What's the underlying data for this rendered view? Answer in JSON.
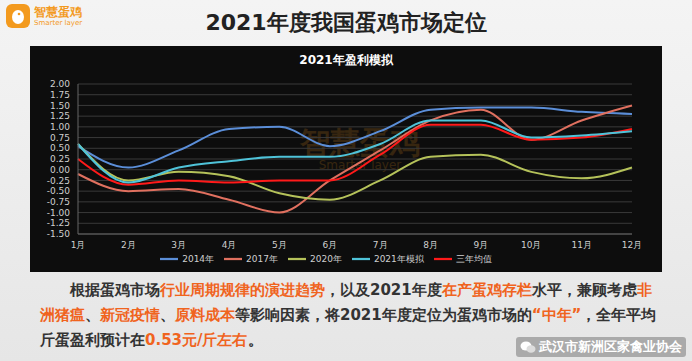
{
  "header": {
    "title": "2021年度我国蛋鸡市场定位",
    "logo": {
      "name": "智慧蛋鸡",
      "subtitle": "Smarter layer"
    }
  },
  "chart_data": {
    "type": "line",
    "title": "2021年盈利模拟",
    "categories": [
      "1月",
      "2月",
      "3月",
      "4月",
      "5月",
      "6月",
      "7月",
      "8月",
      "9月",
      "10月",
      "11月",
      "12月"
    ],
    "series": [
      {
        "name": "2014年",
        "color": "#5b8ed8",
        "values": [
          0.55,
          0.05,
          0.45,
          0.95,
          1.0,
          0.55,
          0.9,
          1.4,
          1.45,
          1.45,
          1.35,
          1.3
        ]
      },
      {
        "name": "2017年",
        "color": "#e0705f",
        "values": [
          -0.1,
          -0.5,
          -0.45,
          -0.7,
          -1.0,
          -0.25,
          0.45,
          1.15,
          1.4,
          0.7,
          1.15,
          1.5
        ]
      },
      {
        "name": "2020年",
        "color": "#b5c25a",
        "values": [
          0.6,
          -0.25,
          -0.05,
          -0.15,
          -0.55,
          -0.7,
          -0.25,
          0.3,
          0.35,
          -0.05,
          -0.2,
          0.05
        ]
      },
      {
        "name": "三年均值",
        "color": "#ff1a1a",
        "values": [
          0.25,
          -0.35,
          -0.25,
          -0.3,
          -0.25,
          -0.25,
          0.35,
          1.05,
          1.05,
          0.7,
          0.75,
          0.95
        ]
      },
      {
        "name": "2021年模拟",
        "color": "#4fc3d9",
        "values": [
          0.6,
          -0.3,
          0.05,
          0.2,
          0.3,
          0.3,
          0.6,
          1.15,
          1.15,
          0.75,
          0.8,
          0.9
        ]
      }
    ],
    "ylim": [
      -1.5,
      2
    ],
    "yticks": [
      {
        "value": -1.5,
        "label": "-1.50"
      },
      {
        "value": -1.25,
        "label": "-1.25"
      },
      {
        "value": -1,
        "label": "-1.00"
      },
      {
        "value": -0.75,
        "label": "-0.75"
      },
      {
        "value": -0.5,
        "label": "-0.50"
      },
      {
        "value": -0.25,
        "label": "-0.25"
      },
      {
        "value": 0,
        "label": "0.00"
      },
      {
        "value": 0.25,
        "label": "0.25"
      },
      {
        "value": 0.5,
        "label": "0.50"
      },
      {
        "value": 0.75,
        "label": "0.75"
      },
      {
        "value": 1,
        "label": "1.00"
      },
      {
        "value": 1.25,
        "label": "1.25"
      },
      {
        "value": 1.5,
        "label": "1.50"
      },
      {
        "value": 1.75,
        "label": "1.75"
      },
      {
        "value": 2,
        "label": "2.00"
      }
    ],
    "grid": true,
    "legend": "bottom",
    "marker": "none",
    "line_style": "solid"
  },
  "paragraph": [
    {
      "text": "根据蛋鸡市场",
      "emphasis": false
    },
    {
      "text": "行业周期规律的演进趋势",
      "emphasis": true
    },
    {
      "text": "，以及2021年度",
      "emphasis": false
    },
    {
      "text": "在产蛋鸡存栏",
      "emphasis": true
    },
    {
      "text": "水平，兼顾考虑",
      "emphasis": false
    },
    {
      "text": "非洲猪瘟",
      "emphasis": true
    },
    {
      "text": "、",
      "emphasis": false
    },
    {
      "text": "新冠疫情",
      "emphasis": true
    },
    {
      "text": "、",
      "emphasis": false
    },
    {
      "text": "原料成本",
      "emphasis": true
    },
    {
      "text": "等影响因素，将2021年度定位为蛋鸡市场的",
      "emphasis": false
    },
    {
      "text": "“中年”",
      "emphasis": true
    },
    {
      "text": "，全年平均斤蛋盈利预计在",
      "emphasis": false
    },
    {
      "text": "0.53元/斤左右",
      "emphasis": true
    },
    {
      "text": "。",
      "emphasis": false
    }
  ],
  "watermark": "武汉市新洲区家禽业协会"
}
